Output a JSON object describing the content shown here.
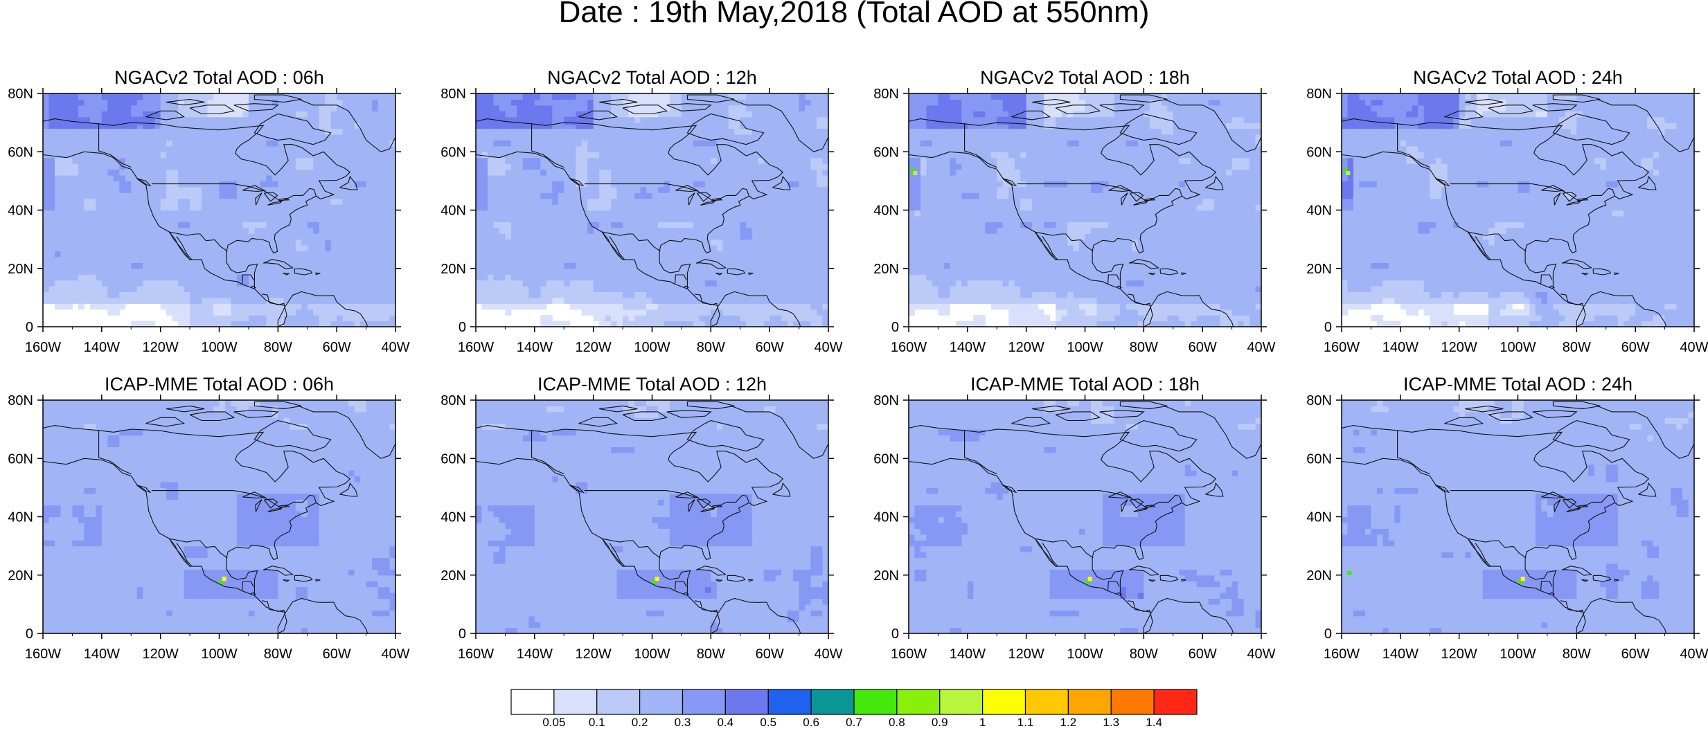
{
  "main_title": "Date : 19th May,2018 (Total AOD at 550nm)",
  "panels": [
    {
      "title": "NGACv2 Total AOD : 06h",
      "model": "ngac",
      "hour": "06"
    },
    {
      "title": "NGACv2 Total AOD : 12h",
      "model": "ngac",
      "hour": "12"
    },
    {
      "title": "NGACv2 Total AOD : 18h",
      "model": "ngac",
      "hour": "18"
    },
    {
      "title": "NGACv2 Total AOD : 24h",
      "model": "ngac",
      "hour": "24"
    },
    {
      "title": "ICAP-MME Total AOD : 06h",
      "model": "icap",
      "hour": "06"
    },
    {
      "title": "ICAP-MME Total AOD : 12h",
      "model": "icap",
      "hour": "12"
    },
    {
      "title": "ICAP-MME Total AOD : 18h",
      "model": "icap",
      "hour": "18"
    },
    {
      "title": "ICAP-MME Total AOD : 24h",
      "model": "icap",
      "hour": "24"
    }
  ],
  "lat_ticks": [
    "80N",
    "60N",
    "40N",
    "20N",
    "0"
  ],
  "lon_ticks": [
    "160W",
    "140W",
    "120W",
    "100W",
    "80W",
    "60W",
    "40W"
  ],
  "colorbar": {
    "labels": [
      "0.05",
      "0.1",
      "0.2",
      "0.3",
      "0.4",
      "0.5",
      "0.6",
      "0.7",
      "0.8",
      "0.9",
      "1",
      "1.1",
      "1.2",
      "1.3",
      "1.4"
    ],
    "colors": [
      "#ffffff",
      "#d8e0fb",
      "#bccaf8",
      "#a0b4f6",
      "#8698f4",
      "#6c78ee",
      "#1f62f0",
      "#0a9696",
      "#44e80a",
      "#88f00a",
      "#b8f63c",
      "#ffff00",
      "#ffc800",
      "#ffa500",
      "#ff7800",
      "#ff2814"
    ]
  }
}
